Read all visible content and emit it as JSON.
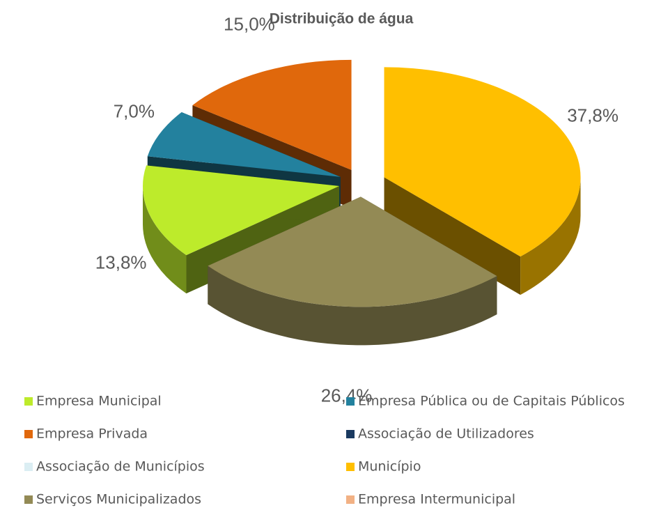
{
  "chart_data": {
    "type": "pie3d",
    "title": "Distribuição de água",
    "categories": [
      "Empresa Municipal",
      "Empresa Pública ou de Capitais  Públicos",
      "Empresa Privada",
      "Associação de Utilizadores",
      "Associação de Municípios",
      "Município",
      "Serviços Municipalizados",
      "Empresa Intermunicipal"
    ],
    "values": [
      13.8,
      7.0,
      15.0,
      0,
      0,
      37.8,
      26.4,
      0
    ],
    "value_labels": [
      "13,8%",
      "7,0%",
      "15,0%",
      null,
      null,
      "37,8%",
      "26,4%",
      null
    ],
    "colors": [
      "#bdeb2b",
      "#23819e",
      "#e0680c",
      "#1a3a60",
      "#dbeef3",
      "#ffbf00",
      "#938a55",
      "#f2b184"
    ],
    "legend": "bottom"
  }
}
